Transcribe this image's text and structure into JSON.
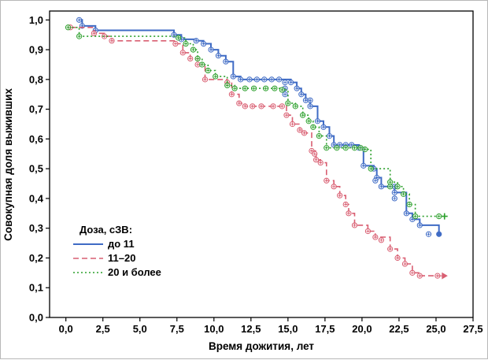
{
  "chart_data": {
    "type": "line",
    "subtype": "kaplan-meier-step-survival",
    "title": "",
    "xlabel": "Время дожития, лет",
    "ylabel": "Совокупная доля выживших",
    "xlim": [
      -1.1,
      27.5
    ],
    "ylim": [
      0,
      1.03
    ],
    "grid": false,
    "legend_title": "Доза, сЗВ:",
    "legend_position": "lower-left",
    "x_ticks": [
      {
        "v": 0,
        "label": "0,0"
      },
      {
        "v": 2.5,
        "label": "2,5"
      },
      {
        "v": 5,
        "label": "5,0"
      },
      {
        "v": 7.5,
        "label": "7,5"
      },
      {
        "v": 10,
        "label": "10,0"
      },
      {
        "v": 12.5,
        "label": "12,5"
      },
      {
        "v": 15,
        "label": "15,0"
      },
      {
        "v": 17.5,
        "label": "17,5"
      },
      {
        "v": 20,
        "label": "20,0"
      },
      {
        "v": 22.5,
        "label": "22,5"
      },
      {
        "v": 25,
        "label": "25,0"
      },
      {
        "v": 27.5,
        "label": "27,5"
      }
    ],
    "y_ticks": [
      {
        "v": 0.0,
        "label": "0,0"
      },
      {
        "v": 0.1,
        "label": "0,1"
      },
      {
        "v": 0.2,
        "label": "0,2"
      },
      {
        "v": 0.3,
        "label": "0,3"
      },
      {
        "v": 0.4,
        "label": "0,4"
      },
      {
        "v": 0.5,
        "label": "0,5"
      },
      {
        "v": 0.6,
        "label": "0,6"
      },
      {
        "v": 0.7,
        "label": "0,7"
      },
      {
        "v": 0.8,
        "label": "0,8"
      },
      {
        "v": 0.9,
        "label": "0,9"
      },
      {
        "v": 1.0,
        "label": "1,0"
      }
    ],
    "series": [
      {
        "name": "до 11",
        "color": "#3f6bc5",
        "style": "solid",
        "width": 2,
        "end_marker": "dot",
        "points": [
          [
            0.9,
            1.0
          ],
          [
            1.1,
            0.98
          ],
          [
            2,
            0.965
          ],
          [
            7.3,
            0.95
          ],
          [
            7.8,
            0.935
          ],
          [
            8.8,
            0.93
          ],
          [
            9.3,
            0.92
          ],
          [
            9.8,
            0.9
          ],
          [
            10.3,
            0.88
          ],
          [
            10.8,
            0.86
          ],
          [
            11.3,
            0.81
          ],
          [
            11.8,
            0.8
          ],
          [
            15.2,
            0.79
          ],
          [
            15.6,
            0.77
          ],
          [
            15.9,
            0.75
          ],
          [
            16.2,
            0.73
          ],
          [
            16.5,
            0.71
          ],
          [
            17.0,
            0.66
          ],
          [
            17.4,
            0.64
          ],
          [
            17.8,
            0.61
          ],
          [
            18.1,
            0.58
          ],
          [
            19.8,
            0.57
          ],
          [
            20.1,
            0.51
          ],
          [
            20.8,
            0.5
          ],
          [
            21.0,
            0.47
          ],
          [
            21.3,
            0.44
          ],
          [
            22.2,
            0.42
          ],
          [
            23.0,
            0.35
          ],
          [
            23.4,
            0.33
          ],
          [
            23.9,
            0.31
          ],
          [
            25.2,
            0.28
          ]
        ],
        "censored": [
          [
            12.4,
            0.8
          ],
          [
            12.9,
            0.8
          ],
          [
            13.4,
            0.8
          ],
          [
            13.9,
            0.8
          ],
          [
            14.4,
            0.8
          ],
          [
            14.8,
            0.79
          ],
          [
            14.8,
            0.77
          ],
          [
            14.8,
            0.75
          ],
          [
            16.5,
            0.73
          ],
          [
            18.5,
            0.58
          ],
          [
            18.9,
            0.58
          ],
          [
            19.3,
            0.58
          ],
          [
            20.9,
            0.46
          ],
          [
            22.2,
            0.44
          ],
          [
            22.2,
            0.4
          ],
          [
            24.5,
            0.28
          ]
        ]
      },
      {
        "name": "11–20",
        "color": "#d95f72",
        "style": "dashed",
        "width": 1.6,
        "end_marker": "arrow",
        "points": [
          [
            0.3,
            0.975
          ],
          [
            1.9,
            0.955
          ],
          [
            2.6,
            0.945
          ],
          [
            3.1,
            0.93
          ],
          [
            7.4,
            0.92
          ],
          [
            7.9,
            0.89
          ],
          [
            8.4,
            0.87
          ],
          [
            8.9,
            0.85
          ],
          [
            9.4,
            0.8
          ],
          [
            10.9,
            0.79
          ],
          [
            11.2,
            0.75
          ],
          [
            11.7,
            0.72
          ],
          [
            12.1,
            0.71
          ],
          [
            14.9,
            0.68
          ],
          [
            15.3,
            0.65
          ],
          [
            15.8,
            0.63
          ],
          [
            16.1,
            0.62
          ],
          [
            16.6,
            0.56
          ],
          [
            16.9,
            0.53
          ],
          [
            17.2,
            0.52
          ],
          [
            17.6,
            0.46
          ],
          [
            18.1,
            0.44
          ],
          [
            18.5,
            0.41
          ],
          [
            18.9,
            0.38
          ],
          [
            19.1,
            0.35
          ],
          [
            19.5,
            0.31
          ],
          [
            20.4,
            0.29
          ],
          [
            20.9,
            0.27
          ],
          [
            21.9,
            0.23
          ],
          [
            22.4,
            0.2
          ],
          [
            22.9,
            0.18
          ],
          [
            23.4,
            0.15
          ],
          [
            23.9,
            0.14
          ],
          [
            25.1,
            0.14
          ]
        ],
        "censored": [
          [
            12.6,
            0.71
          ],
          [
            13.2,
            0.71
          ],
          [
            14.0,
            0.71
          ],
          [
            14.6,
            0.71
          ],
          [
            16.8,
            0.55
          ],
          [
            21.3,
            0.26
          ]
        ]
      },
      {
        "name": "20 и более",
        "color": "#2ca02c",
        "style": "dotted",
        "width": 1.6,
        "end_marker": "plus",
        "points": [
          [
            0.15,
            0.975
          ],
          [
            0.9,
            0.945
          ],
          [
            7.6,
            0.94
          ],
          [
            8.1,
            0.92
          ],
          [
            8.6,
            0.9
          ],
          [
            8.9,
            0.87
          ],
          [
            9.2,
            0.85
          ],
          [
            9.6,
            0.83
          ],
          [
            10.1,
            0.81
          ],
          [
            10.9,
            0.78
          ],
          [
            11.4,
            0.77
          ],
          [
            14.6,
            0.765
          ],
          [
            15.0,
            0.72
          ],
          [
            15.5,
            0.71
          ],
          [
            16.0,
            0.68
          ],
          [
            16.4,
            0.66
          ],
          [
            16.7,
            0.64
          ],
          [
            17.1,
            0.61
          ],
          [
            17.6,
            0.57
          ],
          [
            20.2,
            0.565
          ],
          [
            20.6,
            0.5
          ],
          [
            21.9,
            0.455
          ],
          [
            22.4,
            0.44
          ],
          [
            22.8,
            0.415
          ],
          [
            23.2,
            0.38
          ],
          [
            23.6,
            0.34
          ],
          [
            25.2,
            0.34
          ]
        ],
        "censored": [
          [
            12.1,
            0.77
          ],
          [
            12.7,
            0.77
          ],
          [
            13.5,
            0.77
          ],
          [
            14.1,
            0.77
          ],
          [
            18.3,
            0.57
          ],
          [
            18.9,
            0.57
          ],
          [
            19.5,
            0.57
          ],
          [
            19.9,
            0.57
          ],
          [
            21.9,
            0.44
          ]
        ]
      }
    ]
  }
}
